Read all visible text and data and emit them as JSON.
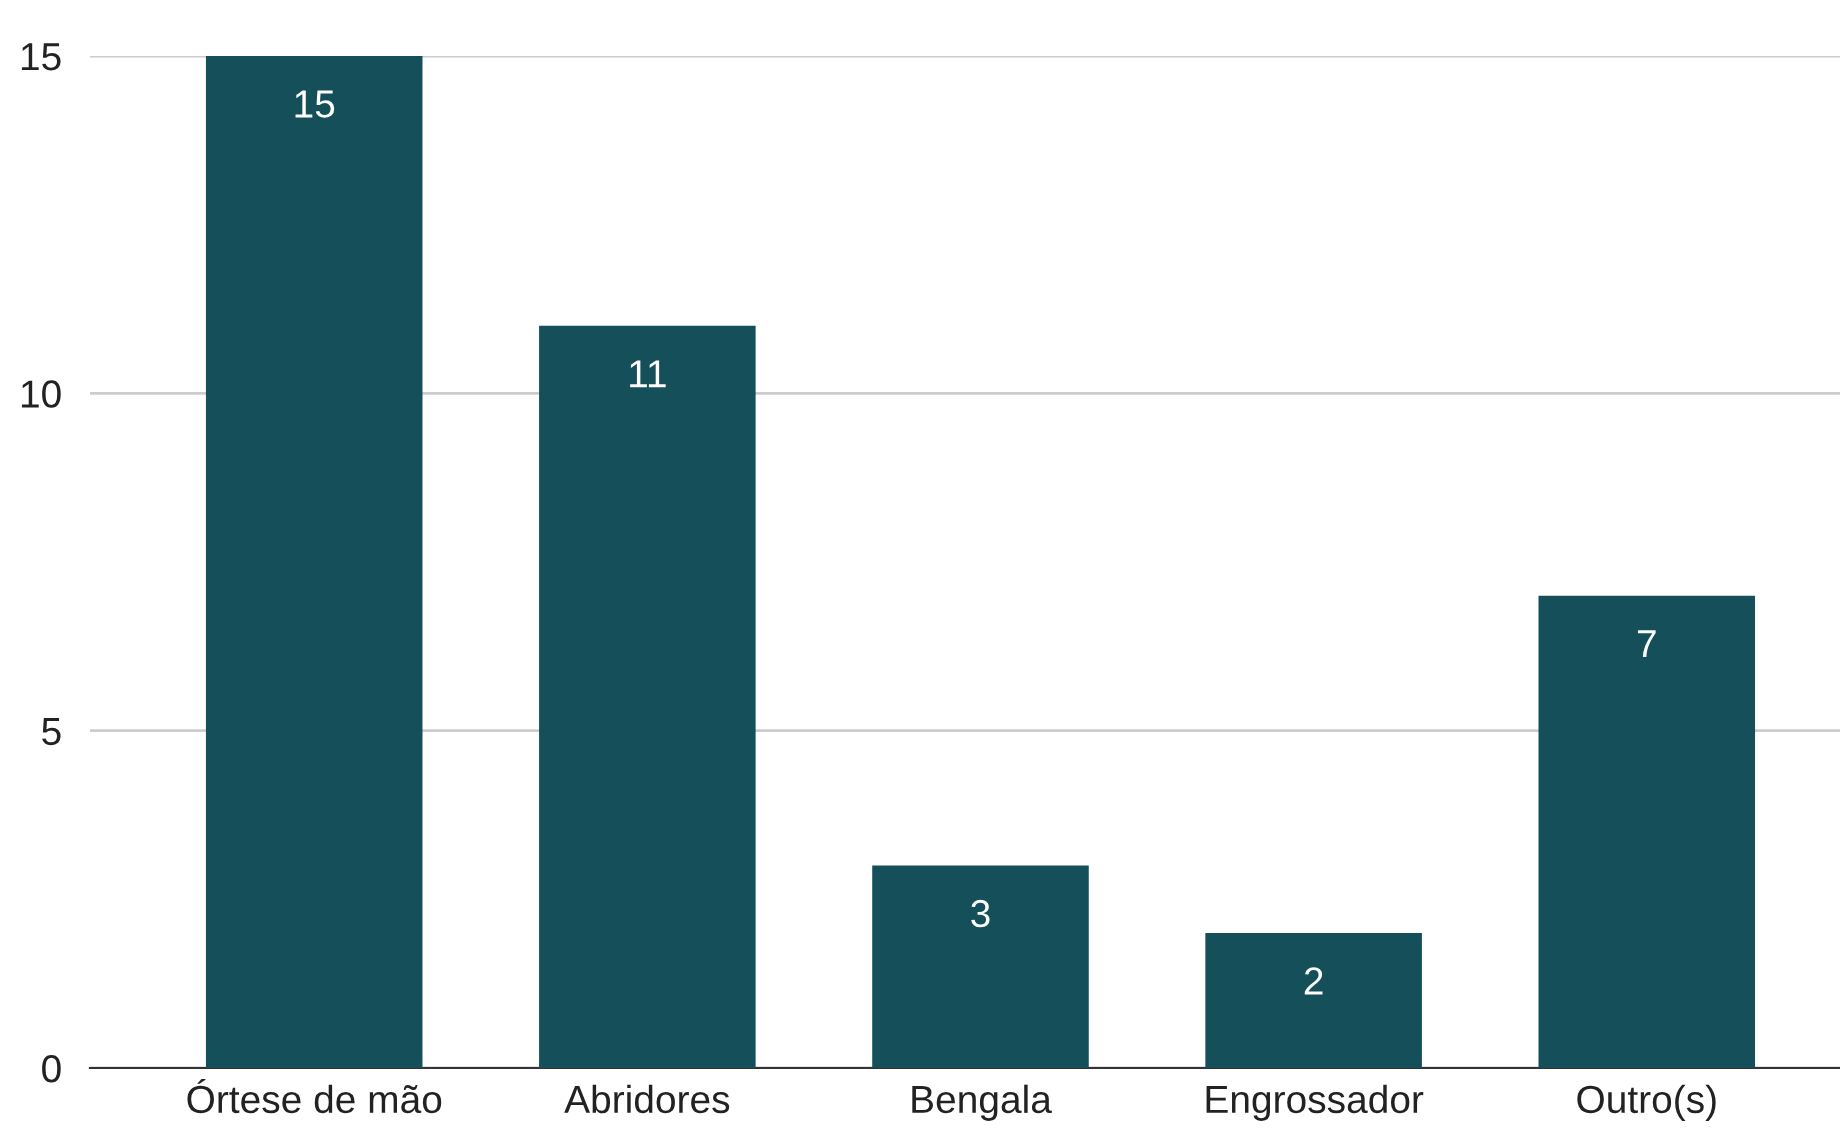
{
  "chart_data": {
    "type": "bar",
    "categories": [
      "Órtese de mão",
      "Abridores",
      "Bengala",
      "Engrossador",
      "Outro(s)"
    ],
    "values": [
      15,
      11,
      3,
      2,
      7
    ],
    "color": "#144f5a",
    "ylim": [
      0,
      15
    ],
    "yticks": [
      0,
      5,
      10,
      15
    ],
    "grid": "y",
    "data_labels": true
  }
}
